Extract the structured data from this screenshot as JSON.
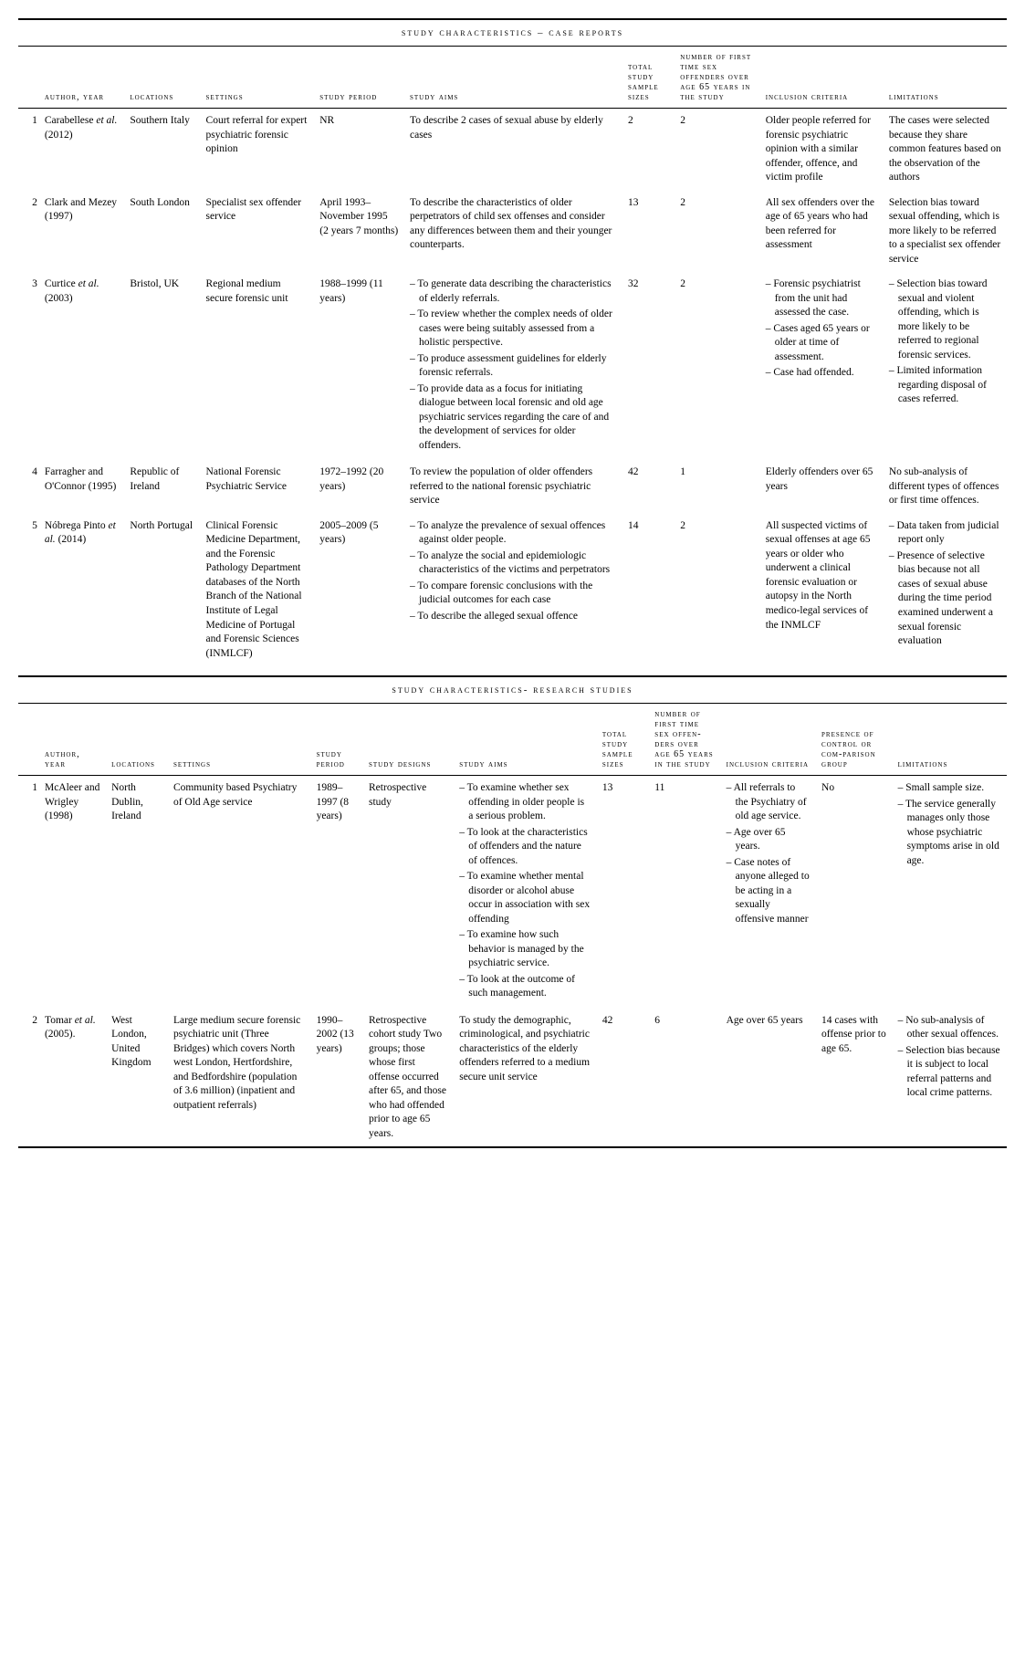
{
  "section1": {
    "title": "study characteristics – case reports",
    "headers": {
      "idx": "",
      "author": "author, year",
      "locations": "locations",
      "settings": "settings",
      "period": "study period",
      "aims": "study aims",
      "total": "total study sample sizes",
      "offenders": "number of first time sex offenders over age 65 years in the study",
      "inclusion": "inclusion criteria",
      "limitations": "limitations"
    },
    "rows": [
      {
        "idx": "1",
        "author": "Carabellese <em>et al.</em> (2012)",
        "locations": "Southern Italy",
        "settings": "Court referral for expert psychiatric forensic opinion",
        "period": "NR",
        "aims_plain": "To describe 2 cases of sexual abuse by elderly cases",
        "total": "2",
        "offenders": "2",
        "inclusion_plain": "Older people referred for forensic psychiatric opinion with a similar offender, offence, and victim profile",
        "limitations_plain": "The cases were selected because they share common features based on the observation of the authors"
      },
      {
        "idx": "2",
        "author": "Clark and Mezey (1997)",
        "locations": "South London",
        "settings": "Specialist sex offender service",
        "period": "April 1993–November 1995 (2 years 7 months)",
        "aims_plain": "To describe the characteristics of older perpetrators of child sex offenses and consider any differences between them and their younger counterparts.",
        "total": "13",
        "offenders": "2",
        "inclusion_plain": "All sex offenders over the age of 65 years who had been referred for assessment",
        "limitations_plain": "Selection bias toward sexual offending, which is more likely to be referred to a specialist sex offender service"
      },
      {
        "idx": "3",
        "author": "Curtice <em>et al.</em> (2003)",
        "locations": "Bristol, UK",
        "settings": "Regional medium secure forensic unit",
        "period": "1988–1999 (11 years)",
        "aims_list": [
          "To generate data describing the characteristics of elderly referrals.",
          "To review whether the complex needs of older cases were being suitably assessed from a holistic perspective.",
          "To produce assessment guidelines for elderly forensic referrals.",
          "To provide data as a focus for initiating dialogue between local forensic and old age psychiatric services regarding the care of and the development of services for older offenders."
        ],
        "total": "32",
        "offenders": "2",
        "inclusion_list": [
          "Forensic psychiatrist from the unit had assessed the case.",
          "Cases aged 65 years or older at time of assessment.",
          "Case had offended."
        ],
        "limitations_list": [
          "Selection bias toward sexual and violent offending, which is more likely to be referred to regional forensic services.",
          "Limited information regarding disposal of cases referred."
        ]
      },
      {
        "idx": "4",
        "author": "Farragher and O'Connor (1995)",
        "locations": "Republic of Ireland",
        "settings": "National Forensic Psychiatric Service",
        "period": "1972–1992 (20 years)",
        "aims_plain": "To review the population of older offenders referred to the national forensic psychiatric service",
        "total": "42",
        "offenders": "1",
        "inclusion_plain": "Elderly offenders over 65 years",
        "limitations_plain": "No sub-analysis of different types of offences or first time offences."
      },
      {
        "idx": "5",
        "author": "Nóbrega Pinto <em>et al.</em> (2014)",
        "locations": "North Portugal",
        "settings": "Clinical Forensic Medicine Department, and the Forensic Pathology Department databases of the North Branch of the National Institute of Legal Medicine of Portugal and Forensic Sciences (INMLCF)",
        "period": "2005–2009 (5 years)",
        "aims_list": [
          "To analyze the prevalence of sexual offences against older people.",
          "To analyze the social and epidemiologic characteristics of the victims and perpetrators",
          "To compare forensic conclusions with the judicial outcomes for each case",
          "To describe the alleged sexual offence"
        ],
        "total": "14",
        "offenders": "2",
        "inclusion_plain": "All suspected victims of sexual offenses at age 65 years or older who underwent a clinical forensic evaluation or autopsy in the North medico-legal services of the INMLCF",
        "limitations_list": [
          "Data taken from judicial report only",
          "Presence of selective bias because not all cases of sexual abuse during the time period examined underwent a sexual forensic evaluation"
        ]
      }
    ]
  },
  "section2": {
    "title": "study characteristics- research studies",
    "headers": {
      "idx": "",
      "author": "author, year",
      "locations": "locations",
      "settings": "settings",
      "period": "study period",
      "designs": "study designs",
      "aims": "study aims",
      "total": "total study sample sizes",
      "offenders": "number of first time sex offen-ders over age 65 years in the study",
      "inclusion": "inclusion criteria",
      "control": "presence of control or com-parison group",
      "limitations": "limitations"
    },
    "rows": [
      {
        "idx": "1",
        "author": "McAleer and Wrigley (1998)",
        "locations": "North Dublin, Ireland",
        "settings": "Community based Psychiatry of Old Age service",
        "period": "1989–1997 (8 years)",
        "designs": "Retrospective study",
        "aims_list": [
          "To examine whether sex offending in older people is a serious problem.",
          "To look at the characteristics of offenders and the nature of offences.",
          "To examine whether mental disorder or alcohol abuse occur in association with sex offending",
          "To examine how such behavior is managed by the psychiatric service.",
          "To look at the outcome of such management."
        ],
        "total": "13",
        "offenders": "11",
        "inclusion_list": [
          "All referrals to the Psychiatry of old age service.",
          "Age over 65 years.",
          "Case notes of anyone alleged to be acting in a sexually offensive manner"
        ],
        "control": "No",
        "limitations_list": [
          "Small sample size.",
          "The service generally manages only those whose psychiatric symptoms arise in old age."
        ]
      },
      {
        "idx": "2",
        "author": "Tomar <em>et al.</em> (2005).",
        "locations": "West London, United Kingdom",
        "settings": "Large medium secure forensic psychiatric unit (Three Bridges) which covers North west London, Hertfordshire, and Bedfordshire (population of 3.6 million) (inpatient and outpatient referrals)",
        "period": "1990–2002 (13 years)",
        "designs": "Retrospective cohort study Two groups; those whose first offense occurred after 65, and those who had offended prior to age 65 years.",
        "aims_plain": "To study the demographic, criminological, and psychiatric characteristics of the elderly offenders referred to a medium secure unit service",
        "total": "42",
        "offenders": "6",
        "inclusion_plain": "Age over 65 years",
        "control": "14 cases with offense prior to age 65.",
        "limitations_list": [
          "No sub-analysis of other sexual offences.",
          "Selection bias because it is subject to local referral patterns and local crime patterns."
        ]
      }
    ]
  }
}
